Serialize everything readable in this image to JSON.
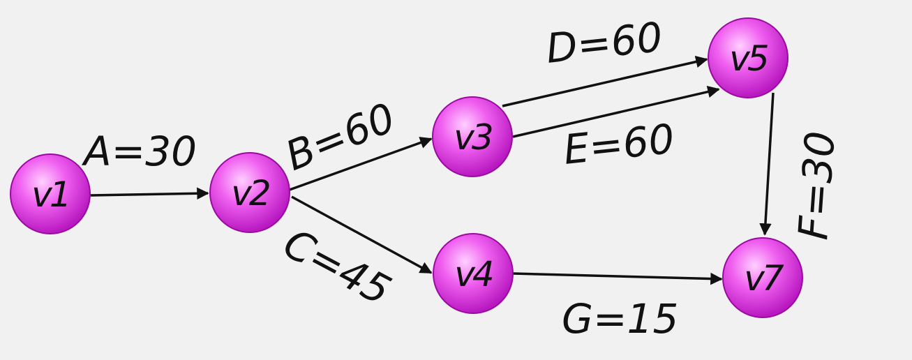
{
  "diagram": {
    "type": "directed-network",
    "colors": {
      "node_center": "#ffd0ff",
      "node_mid": "#ee44ee",
      "node_edge": "#a010a8",
      "ink": "#111111",
      "background": "#f2f1f1"
    },
    "nodes": [
      {
        "id": "v1",
        "label": "v1"
      },
      {
        "id": "v2",
        "label": "v2"
      },
      {
        "id": "v3",
        "label": "v3"
      },
      {
        "id": "v4",
        "label": "v4"
      },
      {
        "id": "v5",
        "label": "v5"
      },
      {
        "id": "v7",
        "label": "v7"
      }
    ],
    "edges": [
      {
        "id": "A",
        "from": "v1",
        "to": "v2",
        "label": "A=30",
        "activity": "A",
        "duration": 30
      },
      {
        "id": "B",
        "from": "v2",
        "to": "v3",
        "label": "B=60",
        "activity": "B",
        "duration": 60
      },
      {
        "id": "C",
        "from": "v2",
        "to": "v4",
        "label": "C=45",
        "activity": "C",
        "duration": 45
      },
      {
        "id": "D",
        "from": "v3",
        "to": "v5",
        "label": "D=60",
        "activity": "D",
        "duration": 60
      },
      {
        "id": "E",
        "from": "v3",
        "to": "v5",
        "label": "E=60",
        "activity": "E",
        "duration": 60
      },
      {
        "id": "F",
        "from": "v5",
        "to": "v7",
        "label": "F=30",
        "activity": "F",
        "duration": 30
      },
      {
        "id": "G",
        "from": "v4",
        "to": "v7",
        "label": "G=15",
        "activity": "G",
        "duration": 15
      }
    ]
  }
}
